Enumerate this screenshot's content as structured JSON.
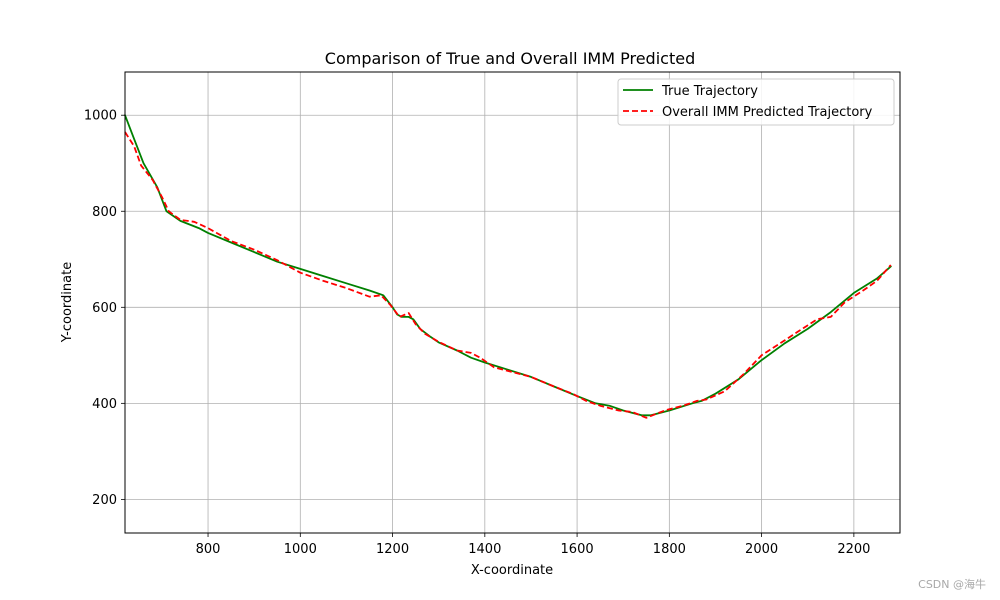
{
  "chart_data": {
    "type": "line",
    "title": "Comparison of True and Overall IMM Predicted",
    "xlabel": "X-coordinate",
    "ylabel": "Y-coordinate",
    "xlim": [
      620,
      2300
    ],
    "ylim": [
      130,
      1090
    ],
    "xticks": [
      800,
      1000,
      1200,
      1400,
      1600,
      1800,
      2000,
      2200
    ],
    "yticks": [
      200,
      400,
      600,
      800,
      1000
    ],
    "grid": true,
    "legend_position": "top-right",
    "series": [
      {
        "name": "True Trajectory",
        "color": "#008000",
        "style": "solid",
        "points": [
          [
            620,
            1000
          ],
          [
            640,
            950
          ],
          [
            660,
            900
          ],
          [
            690,
            850
          ],
          [
            710,
            800
          ],
          [
            740,
            780
          ],
          [
            780,
            765
          ],
          [
            800,
            755
          ],
          [
            850,
            735
          ],
          [
            900,
            715
          ],
          [
            950,
            695
          ],
          [
            1000,
            680
          ],
          [
            1050,
            665
          ],
          [
            1100,
            650
          ],
          [
            1150,
            635
          ],
          [
            1180,
            625
          ],
          [
            1200,
            600
          ],
          [
            1210,
            585
          ],
          [
            1220,
            580
          ],
          [
            1235,
            580
          ],
          [
            1245,
            575
          ],
          [
            1260,
            555
          ],
          [
            1280,
            540
          ],
          [
            1300,
            527
          ],
          [
            1340,
            510
          ],
          [
            1370,
            495
          ],
          [
            1400,
            485
          ],
          [
            1450,
            470
          ],
          [
            1500,
            455
          ],
          [
            1550,
            435
          ],
          [
            1600,
            415
          ],
          [
            1640,
            400
          ],
          [
            1670,
            395
          ],
          [
            1700,
            385
          ],
          [
            1740,
            375
          ],
          [
            1760,
            375
          ],
          [
            1800,
            385
          ],
          [
            1850,
            400
          ],
          [
            1870,
            405
          ],
          [
            1900,
            420
          ],
          [
            1950,
            450
          ],
          [
            2000,
            490
          ],
          [
            2050,
            525
          ],
          [
            2100,
            555
          ],
          [
            2150,
            590
          ],
          [
            2200,
            630
          ],
          [
            2250,
            660
          ],
          [
            2280,
            685
          ]
        ]
      },
      {
        "name": "Overall IMM Predicted Trajectory",
        "color": "#ff0000",
        "style": "dashed",
        "points": [
          [
            620,
            965
          ],
          [
            640,
            935
          ],
          [
            655,
            895
          ],
          [
            680,
            865
          ],
          [
            700,
            830
          ],
          [
            715,
            800
          ],
          [
            740,
            782
          ],
          [
            770,
            778
          ],
          [
            800,
            765
          ],
          [
            850,
            738
          ],
          [
            900,
            720
          ],
          [
            950,
            698
          ],
          [
            1000,
            672
          ],
          [
            1050,
            655
          ],
          [
            1100,
            640
          ],
          [
            1150,
            622
          ],
          [
            1175,
            625
          ],
          [
            1195,
            605
          ],
          [
            1215,
            580
          ],
          [
            1235,
            588
          ],
          [
            1250,
            565
          ],
          [
            1270,
            545
          ],
          [
            1300,
            528
          ],
          [
            1340,
            510
          ],
          [
            1370,
            505
          ],
          [
            1390,
            495
          ],
          [
            1420,
            475
          ],
          [
            1460,
            465
          ],
          [
            1500,
            455
          ],
          [
            1550,
            435
          ],
          [
            1590,
            420
          ],
          [
            1620,
            405
          ],
          [
            1650,
            395
          ],
          [
            1690,
            385
          ],
          [
            1720,
            382
          ],
          [
            1750,
            370
          ],
          [
            1790,
            385
          ],
          [
            1830,
            395
          ],
          [
            1860,
            405
          ],
          [
            1880,
            408
          ],
          [
            1920,
            425
          ],
          [
            1960,
            460
          ],
          [
            2000,
            500
          ],
          [
            2040,
            525
          ],
          [
            2080,
            550
          ],
          [
            2120,
            575
          ],
          [
            2150,
            580
          ],
          [
            2180,
            610
          ],
          [
            2220,
            635
          ],
          [
            2250,
            655
          ],
          [
            2280,
            688
          ]
        ]
      }
    ]
  },
  "watermark": "CSDN @海牛"
}
